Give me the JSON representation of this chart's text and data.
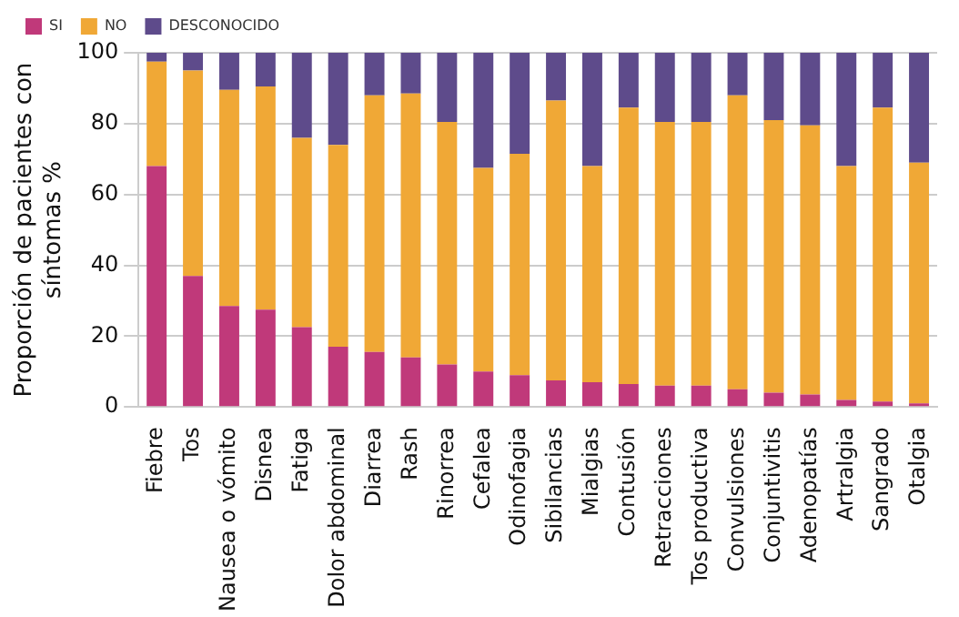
{
  "chart_data": {
    "type": "bar",
    "stacked": true,
    "ylabel": "Proporción de pacientes con síntomas %",
    "categories": [
      "Fiebre",
      "Tos",
      "Nausea o vómito",
      "Disnea",
      "Fatiga",
      "Dolor abdominal",
      "Diarrea",
      "Rash",
      "Rinorrea",
      "Cefalea",
      "Odinofagia",
      "Sibilancias",
      "Mialgias",
      "Contusión",
      "Retracciones",
      "Tos productiva",
      "Convulsiones",
      "Conjuntivitis",
      "Adenopatías",
      "Artralgia",
      "Sangrado",
      "Otalgia"
    ],
    "series": [
      {
        "name": "SI",
        "color": "#c0397a",
        "values": [
          68,
          37,
          28.5,
          27.5,
          22.5,
          17,
          15.5,
          14,
          12,
          10,
          9,
          7.5,
          7,
          6.5,
          6,
          6,
          5,
          4,
          3.5,
          2,
          1.5,
          1
        ]
      },
      {
        "name": "NO",
        "color": "#f0a836",
        "values": [
          29.5,
          58,
          61,
          63,
          53.5,
          57,
          72.5,
          74.5,
          68.5,
          57.5,
          62.5,
          79,
          61,
          78,
          74.5,
          74.5,
          83,
          77,
          76,
          66,
          83,
          68
        ]
      },
      {
        "name": "DESCONOCIDO",
        "color": "#5e4b8b",
        "values": [
          2.5,
          5,
          10.5,
          9.5,
          24,
          26,
          12,
          11.5,
          19.5,
          32.5,
          28.5,
          13.5,
          32,
          15.5,
          19.5,
          19.5,
          12,
          19,
          20.5,
          32,
          15.5,
          31
        ]
      }
    ],
    "ylim": [
      0,
      100
    ],
    "yticks": [
      0,
      20,
      40,
      60,
      80,
      100
    ],
    "grid": "y",
    "legend": "top left"
  }
}
